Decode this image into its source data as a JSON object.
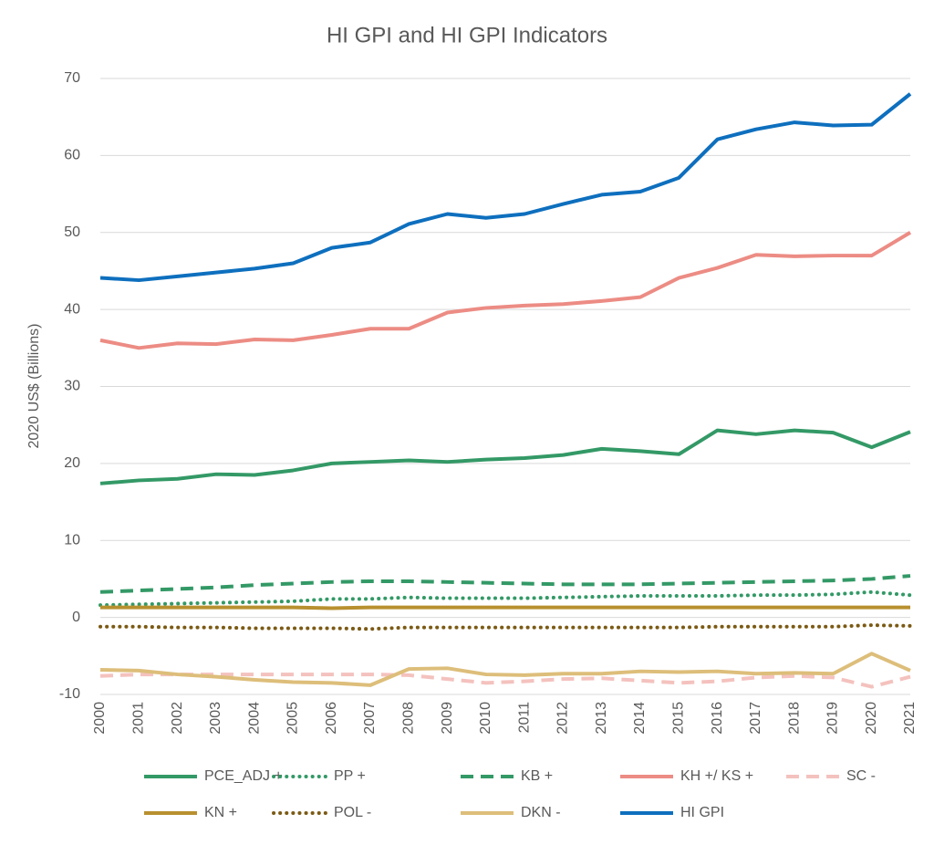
{
  "chart_data": {
    "type": "line",
    "title": "HI GPI and HI GPI Indicators",
    "y_label": "2020 US$ (Billions)",
    "categories": [
      "2000",
      "2001",
      "2002",
      "2003",
      "2004",
      "2005",
      "2006",
      "2007",
      "2008",
      "2009",
      "2010",
      "2011",
      "2012",
      "2013",
      "2014",
      "2015",
      "2016",
      "2017",
      "2018",
      "2019",
      "2020",
      "2021"
    ],
    "ylim": [
      -10,
      70
    ],
    "yticks": [
      -10,
      0,
      10,
      20,
      30,
      40,
      50,
      60,
      70
    ],
    "grid": true,
    "legend": "bottom",
    "series": [
      {
        "name": "PCE_ADJ +",
        "color": "#339966",
        "dash": "solid",
        "values": [
          17.4,
          17.8,
          18.0,
          18.6,
          18.5,
          19.1,
          20.0,
          20.2,
          20.4,
          20.2,
          20.5,
          20.7,
          21.1,
          21.9,
          21.6,
          21.2,
          24.3,
          23.8,
          24.3,
          24.0,
          22.1,
          24.1
        ]
      },
      {
        "name": "PP +",
        "color": "#339966",
        "dash": "dot",
        "values": [
          1.6,
          1.7,
          1.8,
          1.9,
          2.0,
          2.1,
          2.4,
          2.4,
          2.6,
          2.5,
          2.5,
          2.5,
          2.6,
          2.7,
          2.8,
          2.8,
          2.8,
          2.9,
          2.9,
          3.0,
          3.3,
          2.9
        ]
      },
      {
        "name": "KB +",
        "color": "#339966",
        "dash": "dash",
        "values": [
          3.3,
          3.5,
          3.7,
          3.9,
          4.2,
          4.4,
          4.6,
          4.7,
          4.7,
          4.6,
          4.5,
          4.4,
          4.3,
          4.3,
          4.3,
          4.4,
          4.5,
          4.6,
          4.7,
          4.8,
          5.0,
          5.4
        ]
      },
      {
        "name": "KH +/ KS +",
        "color": "#ec8c84",
        "dash": "solid",
        "values": [
          36.0,
          35.0,
          35.6,
          35.5,
          36.1,
          36.0,
          36.7,
          37.5,
          37.5,
          39.6,
          40.2,
          40.5,
          40.7,
          41.1,
          41.6,
          44.1,
          45.4,
          47.1,
          46.9,
          47.0,
          47.0,
          50.0
        ]
      },
      {
        "name": "SC -",
        "color": "#f4c2be",
        "dash": "dash",
        "values": [
          -7.6,
          -7.4,
          -7.4,
          -7.4,
          -7.4,
          -7.4,
          -7.4,
          -7.4,
          -7.5,
          -8.0,
          -8.5,
          -8.3,
          -8.0,
          -7.9,
          -8.2,
          -8.5,
          -8.3,
          -7.8,
          -7.6,
          -7.8,
          -9.0,
          -7.7
        ]
      },
      {
        "name": "KN +",
        "color": "#b8902f",
        "dash": "solid",
        "values": [
          1.3,
          1.3,
          1.3,
          1.3,
          1.3,
          1.3,
          1.2,
          1.3,
          1.3,
          1.3,
          1.3,
          1.3,
          1.3,
          1.3,
          1.3,
          1.3,
          1.3,
          1.3,
          1.3,
          1.3,
          1.3,
          1.3
        ]
      },
      {
        "name": "POL -",
        "color": "#7b5a14",
        "dash": "dot",
        "values": [
          -1.2,
          -1.2,
          -1.3,
          -1.3,
          -1.4,
          -1.4,
          -1.4,
          -1.5,
          -1.3,
          -1.3,
          -1.3,
          -1.3,
          -1.3,
          -1.3,
          -1.3,
          -1.3,
          -1.2,
          -1.2,
          -1.2,
          -1.2,
          -1.0,
          -1.1
        ]
      },
      {
        "name": "DKN -",
        "color": "#ddbe7a",
        "dash": "solid",
        "values": [
          -6.8,
          -6.9,
          -7.4,
          -7.7,
          -8.1,
          -8.4,
          -8.5,
          -8.8,
          -6.7,
          -6.6,
          -7.4,
          -7.5,
          -7.3,
          -7.3,
          -7.0,
          -7.1,
          -7.0,
          -7.3,
          -7.2,
          -7.3,
          -4.7,
          -6.9
        ]
      },
      {
        "name": "HI GPI",
        "color": "#0e6fbe",
        "dash": "solid",
        "values": [
          44.1,
          43.8,
          44.3,
          44.8,
          45.3,
          46.0,
          48.0,
          48.7,
          51.1,
          52.4,
          51.9,
          52.4,
          53.7,
          54.9,
          55.3,
          57.1,
          62.1,
          63.4,
          64.3,
          63.9,
          64.0,
          68.0
        ]
      }
    ]
  }
}
